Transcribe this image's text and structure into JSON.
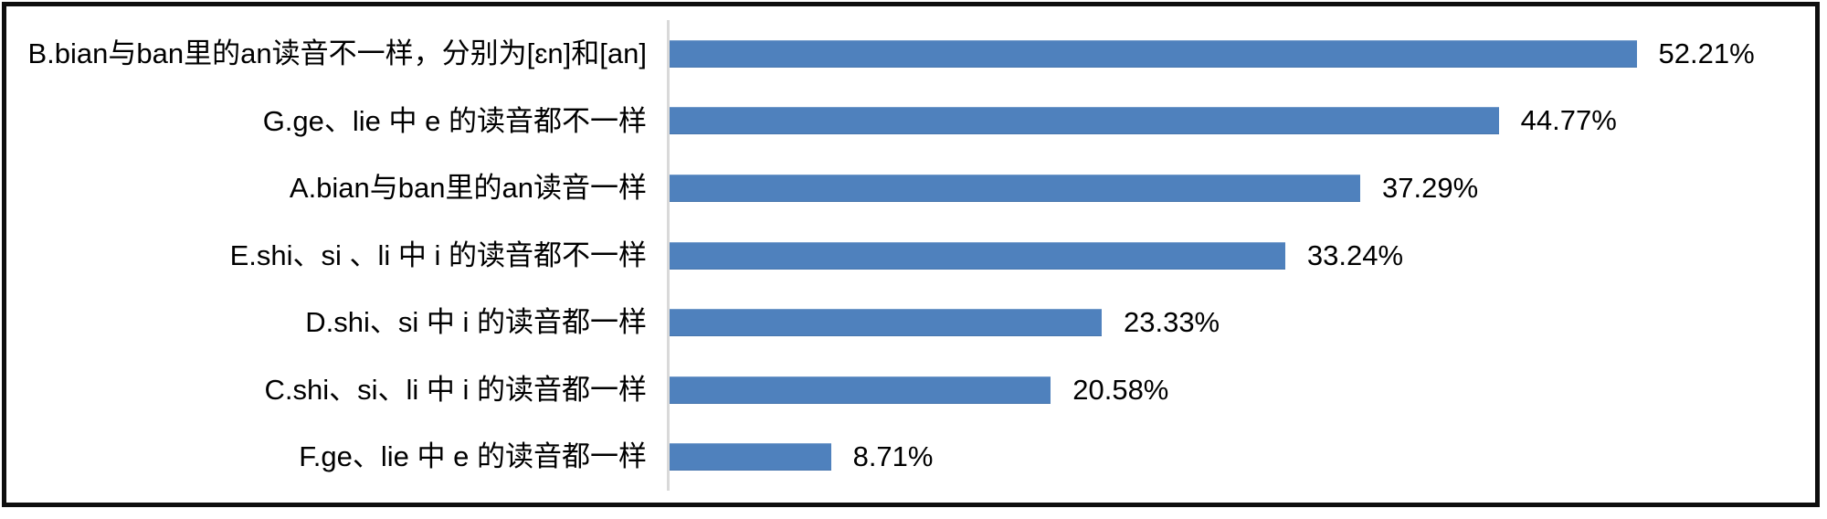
{
  "chart_data": {
    "type": "bar",
    "orientation": "horizontal",
    "title": "",
    "xlabel": "",
    "ylabel": "",
    "xlim": [
      0,
      62
    ],
    "grid": false,
    "legend": false,
    "bar_color": "#4f81bd",
    "axis_line_color": "#d9d9d9",
    "categories": [
      "B.bian与ban里的an读音不一样，分别为[ɛn]和[an]",
      "G.ge、lie 中 e 的读音都不一样",
      "A.bian与ban里的an读音一样",
      "E.shi、si 、li 中 i 的读音都不一样",
      "D.shi、si 中 i 的读音都一样",
      "C.shi、si、li 中 i 的读音都一样",
      "F.ge、lie 中 e 的读音都一样"
    ],
    "values": [
      52.21,
      44.77,
      37.29,
      33.24,
      23.33,
      20.58,
      8.71
    ],
    "value_labels": [
      "52.21%",
      "44.77%",
      "37.29%",
      "33.24%",
      "23.33%",
      "20.58%",
      "8.71%"
    ]
  }
}
